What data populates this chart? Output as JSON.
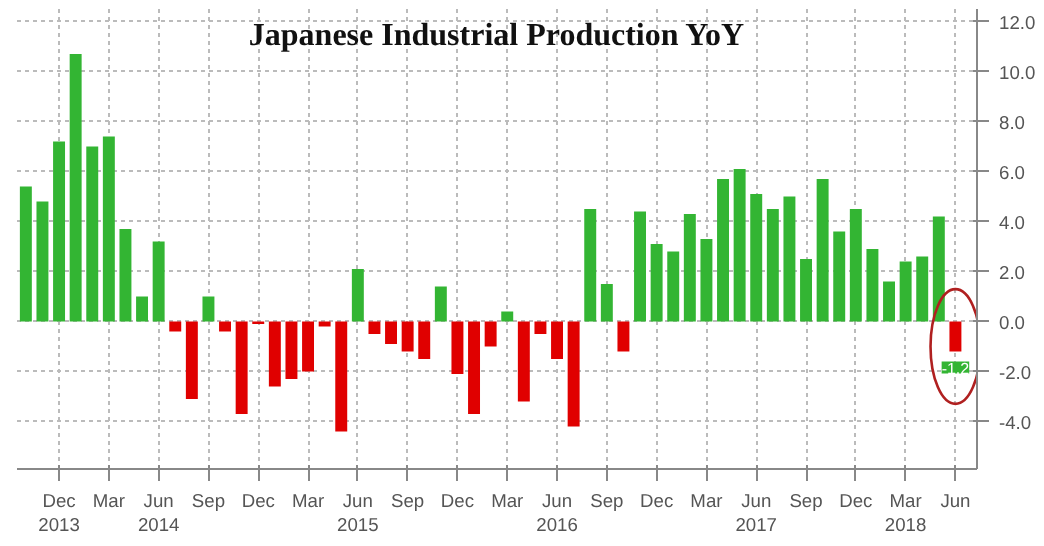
{
  "chart_data": {
    "type": "bar",
    "title": "Japanese Industrial Production YoY",
    "x": [
      "2013-10",
      "2013-11",
      "2013-12",
      "2014-01",
      "2014-02",
      "2014-03",
      "2014-04",
      "2014-05",
      "2014-06",
      "2014-07",
      "2014-08",
      "2014-09",
      "2014-10",
      "2014-11",
      "2014-12",
      "2015-01",
      "2015-02",
      "2015-03",
      "2015-04",
      "2015-05",
      "2015-06",
      "2015-07",
      "2015-08",
      "2015-09",
      "2015-10",
      "2015-11",
      "2015-12",
      "2016-01",
      "2016-02",
      "2016-03",
      "2016-04",
      "2016-05",
      "2016-06",
      "2016-07",
      "2016-08",
      "2016-09",
      "2016-10",
      "2016-11",
      "2016-12",
      "2017-01",
      "2017-02",
      "2017-03",
      "2017-04",
      "2017-05",
      "2017-06",
      "2017-07",
      "2017-08",
      "2017-09",
      "2017-10",
      "2017-11",
      "2017-12",
      "2018-01",
      "2018-02",
      "2018-03",
      "2018-04",
      "2018-05",
      "2018-06"
    ],
    "values": [
      5.4,
      4.8,
      7.2,
      10.7,
      7.0,
      7.4,
      3.7,
      1.0,
      3.2,
      -0.4,
      -3.1,
      1.0,
      -0.4,
      -3.7,
      -0.1,
      -2.6,
      -2.3,
      -2.0,
      -0.2,
      -4.4,
      2.1,
      -0.5,
      -0.9,
      -1.2,
      -1.5,
      1.4,
      -2.1,
      -3.7,
      -1.0,
      0.4,
      -3.2,
      -0.5,
      -1.5,
      -4.2,
      4.5,
      1.5,
      -1.2,
      4.4,
      3.1,
      2.8,
      4.3,
      3.3,
      5.7,
      6.1,
      5.1,
      4.5,
      5.0,
      2.5,
      5.7,
      3.6,
      4.5,
      2.9,
      1.6,
      2.4,
      2.6,
      4.2,
      -1.2
    ],
    "colors": [
      "#33b533",
      "#33b533",
      "#33b533",
      "#33b533",
      "#33b533",
      "#33b533",
      "#33b533",
      "#33b533",
      "#33b533",
      "#e00000",
      "#e00000",
      "#33b533",
      "#e00000",
      "#e00000",
      "#e00000",
      "#e00000",
      "#e00000",
      "#e00000",
      "#e00000",
      "#e00000",
      "#33b533",
      "#e00000",
      "#e00000",
      "#e00000",
      "#e00000",
      "#33b533",
      "#e00000",
      "#e00000",
      "#e00000",
      "#33b533",
      "#e00000",
      "#e00000",
      "#e00000",
      "#e00000",
      "#33b533",
      "#33b533",
      "#e00000",
      "#33b533",
      "#33b533",
      "#33b533",
      "#33b533",
      "#33b533",
      "#33b533",
      "#33b533",
      "#33b533",
      "#33b533",
      "#33b533",
      "#33b533",
      "#33b533",
      "#33b533",
      "#33b533",
      "#33b533",
      "#33b533",
      "#33b533",
      "#33b533",
      "#33b533",
      "#e00000"
    ],
    "value_labels": [
      null,
      null,
      null,
      null,
      null,
      null,
      null,
      null,
      null,
      null,
      null,
      null,
      null,
      null,
      null,
      null,
      null,
      null,
      null,
      null,
      null,
      null,
      null,
      null,
      null,
      null,
      null,
      null,
      null,
      null,
      null,
      null,
      null,
      null,
      null,
      null,
      null,
      null,
      null,
      null,
      null,
      null,
      null,
      null,
      null,
      null,
      null,
      null,
      null,
      null,
      null,
      null,
      null,
      null,
      null,
      null,
      "-1.2"
    ],
    "xlim": [
      "2013-09-15",
      "2018-07-10"
    ],
    "xticks": [
      {
        "value": "2013-12",
        "label": "Dec\n2013"
      },
      {
        "value": "2014-03",
        "label": "Mar"
      },
      {
        "value": "2014-06",
        "label": "Jun\n2014"
      },
      {
        "value": "2014-09",
        "label": "Sep"
      },
      {
        "value": "2014-12",
        "label": "Dec"
      },
      {
        "value": "2015-03",
        "label": "Mar"
      },
      {
        "value": "2015-06",
        "label": "Jun\n2015"
      },
      {
        "value": "2015-09",
        "label": "Sep"
      },
      {
        "value": "2015-12",
        "label": "Dec"
      },
      {
        "value": "2016-03",
        "label": "Mar"
      },
      {
        "value": "2016-06",
        "label": "Jun\n2016"
      },
      {
        "value": "2016-09",
        "label": "Sep"
      },
      {
        "value": "2016-12",
        "label": "Dec"
      },
      {
        "value": "2017-03",
        "label": "Mar"
      },
      {
        "value": "2017-06",
        "label": "Jun\n2017"
      },
      {
        "value": "2017-09",
        "label": "Sep"
      },
      {
        "value": "2017-12",
        "label": "Dec"
      },
      {
        "value": "2018-03",
        "label": "Mar\n2018"
      },
      {
        "value": "2018-06",
        "label": "Jun"
      }
    ],
    "ylim": [
      -5.9,
      12.5
    ],
    "yticks": [
      {
        "value": -4,
        "label": "-4.0"
      },
      {
        "value": -2,
        "label": "-2.0"
      },
      {
        "value": 0,
        "label": "0.0"
      },
      {
        "value": 2,
        "label": "2.0"
      },
      {
        "value": 4,
        "label": "4.0"
      },
      {
        "value": 6,
        "label": "6.0"
      },
      {
        "value": 8,
        "label": "8.0"
      },
      {
        "value": 10,
        "label": "10.0"
      },
      {
        "value": 12,
        "label": "12.0"
      }
    ],
    "grid": true
  }
}
